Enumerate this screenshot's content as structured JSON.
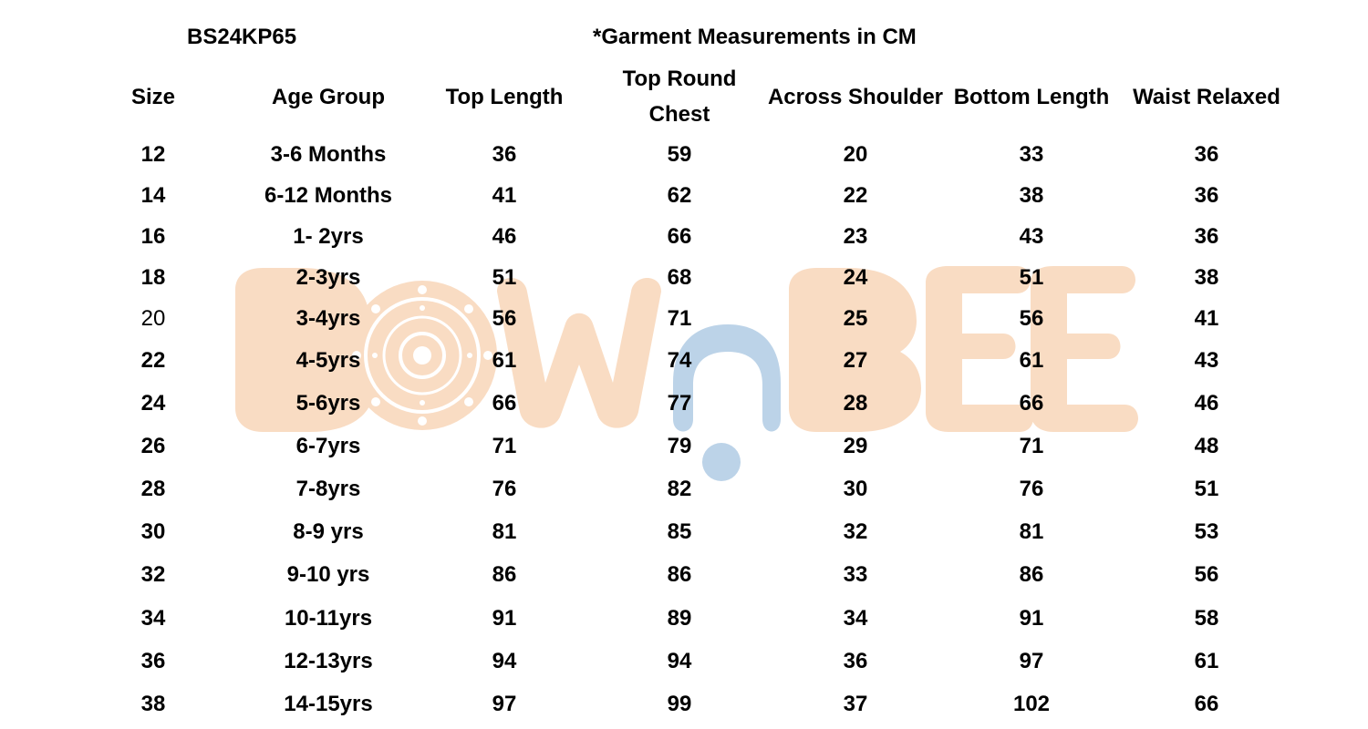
{
  "document": {
    "style_code": "BS24KP65",
    "note": "*Garment Measurements in CM"
  },
  "table": {
    "headers": [
      "Size",
      "Age Group",
      "Top Length",
      "Top Round\nChest",
      "Across Shoulder",
      "Bottom Length",
      "Waist Relaxed"
    ],
    "rows": [
      [
        "12",
        "3-6 Months",
        "36",
        "59",
        "20",
        "33",
        "36"
      ],
      [
        "14",
        "6-12 Months",
        "41",
        "62",
        "22",
        "38",
        "36"
      ],
      [
        "16",
        "1- 2yrs",
        "46",
        "66",
        "23",
        "43",
        "36"
      ],
      [
        "18",
        "2-3yrs",
        "51",
        "68",
        "24",
        "51",
        "38"
      ],
      [
        "20",
        "3-4yrs",
        "56",
        "71",
        "25",
        "56",
        "41"
      ],
      [
        "22",
        "4-5yrs",
        "61",
        "74",
        "27",
        "61",
        "43"
      ],
      [
        "24",
        "5-6yrs",
        "66",
        "77",
        "28",
        "66",
        "46"
      ],
      [
        "26",
        "6-7yrs",
        "71",
        "79",
        "29",
        "71",
        "48"
      ],
      [
        "28",
        "7-8yrs",
        "76",
        "82",
        "30",
        "76",
        "51"
      ],
      [
        "30",
        "8-9 yrs",
        "81",
        "85",
        "32",
        "81",
        "53"
      ],
      [
        "32",
        "9-10 yrs",
        "86",
        "86",
        "33",
        "86",
        "56"
      ],
      [
        "34",
        "10-11yrs",
        "91",
        "89",
        "34",
        "91",
        "58"
      ],
      [
        "36",
        "12-13yrs",
        "94",
        "94",
        "36",
        "97",
        "61"
      ],
      [
        "38",
        "14-15yrs",
        "97",
        "99",
        "37",
        "102",
        "66"
      ]
    ]
  },
  "watermark": {
    "brand_letters": [
      "B",
      "O",
      "W",
      "n",
      "B",
      "E",
      "E"
    ],
    "colors": {
      "peach": "#f9dcc3",
      "blue": "#bcd3e8"
    }
  }
}
